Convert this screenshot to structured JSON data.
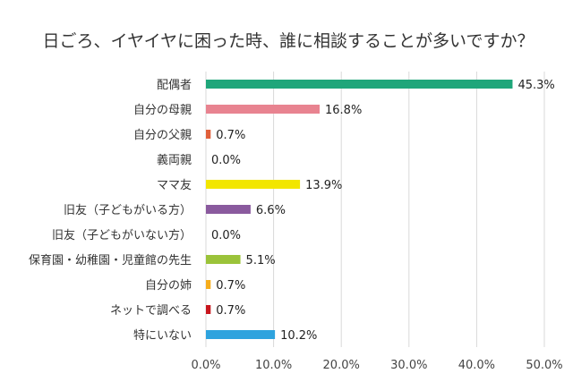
{
  "chart_data": {
    "type": "bar",
    "orientation": "horizontal",
    "title": "日ごろ、イヤイヤに困った時、誰に相談することが多いですか？",
    "categories": [
      "配偶者",
      "自分の母親",
      "自分の父親",
      "義両親",
      "ママ友",
      "旧友（子どもがいる方）",
      "旧友（子どもがいない方）",
      "保育園・幼稚園・児童館の先生",
      "自分の姉",
      "ネットで調べる",
      "特にいない"
    ],
    "values": [
      45.3,
      16.8,
      0.7,
      0.0,
      13.9,
      6.6,
      0.0,
      5.1,
      0.7,
      0.7,
      10.2
    ],
    "value_labels": [
      "45.3%",
      "16.8%",
      "0.7%",
      "0.0%",
      "13.9%",
      "6.6%",
      "0.0%",
      "5.1%",
      "0.7%",
      "0.7%",
      "10.2%"
    ],
    "colors": [
      "#1fa67a",
      "#e88390",
      "#e0603b",
      "#999999",
      "#f2e600",
      "#8a5a9e",
      "#999999",
      "#9bc33a",
      "#f6ad1c",
      "#c8161d",
      "#2ea3de"
    ],
    "xlim": [
      0,
      50
    ],
    "xticks": [
      0,
      10,
      20,
      30,
      40,
      50
    ],
    "xtick_labels": [
      "0.0%",
      "10.0%",
      "20.0%",
      "30.0%",
      "40.0%",
      "50.0%"
    ],
    "grid": true,
    "xlabel": "",
    "ylabel": ""
  }
}
